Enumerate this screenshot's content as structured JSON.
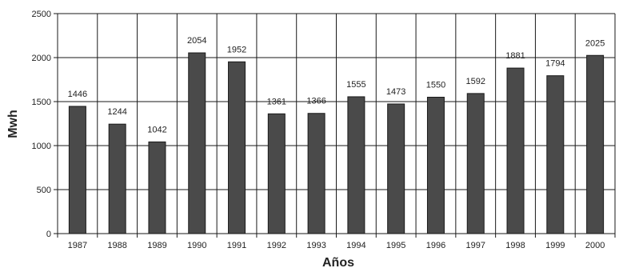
{
  "chart_data": {
    "type": "bar",
    "title": "",
    "xlabel": "Años",
    "ylabel": "Mwh",
    "ylim": [
      0,
      2500
    ],
    "yticks": [
      0,
      500,
      1000,
      1500,
      2000,
      2500
    ],
    "categories": [
      "1987",
      "1988",
      "1989",
      "1990",
      "1991",
      "1992",
      "1993",
      "1994",
      "1995",
      "1996",
      "1997",
      "1998",
      "1999",
      "2000"
    ],
    "values": [
      1446,
      1244,
      1042,
      2054,
      1952,
      1361,
      1366,
      1555,
      1473,
      1550,
      1592,
      1881,
      1794,
      2025
    ],
    "data_labels": [
      "1446",
      "1244",
      "1042",
      "2054",
      "1952",
      "1361",
      "1366",
      "1555",
      "1473",
      "1550",
      "1592",
      "1881",
      "1794",
      "2025"
    ],
    "grid": true,
    "colors": {
      "bar": "#4a4a4a",
      "grid": "#1a1a1a",
      "background": "#ffffff"
    }
  }
}
